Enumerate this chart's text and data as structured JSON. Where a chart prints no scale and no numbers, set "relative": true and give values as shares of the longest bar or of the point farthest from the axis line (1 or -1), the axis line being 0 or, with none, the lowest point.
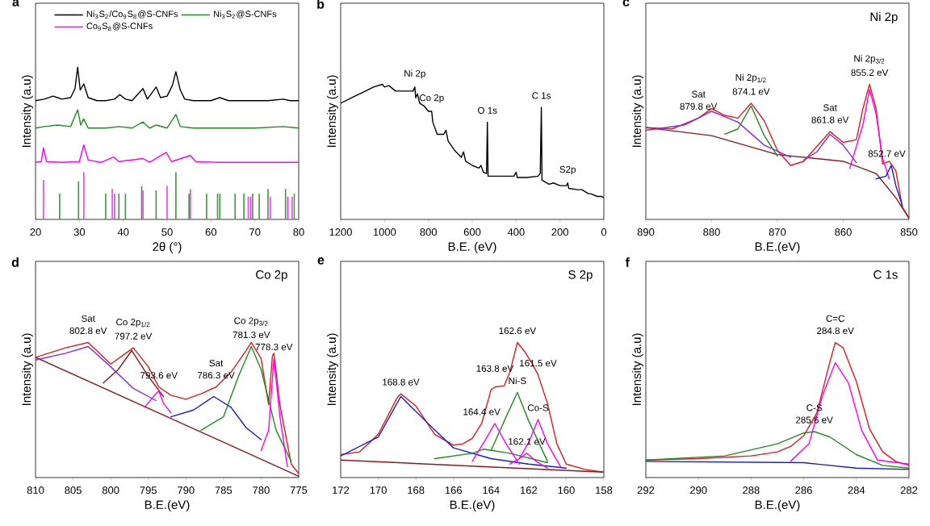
{
  "chart_data": [
    {
      "type": "line",
      "relative": true,
      "title": "a",
      "xlabel": "2θ (°)",
      "ylabel": "Intensity (a.u)",
      "xlim": [
        20,
        80
      ],
      "xticks": [
        20,
        30,
        40,
        50,
        60,
        70,
        80
      ],
      "legend": "top",
      "series": [
        {
          "name": "Ni$_{3}$S$_{2}$/Co$_{9}$S$_{8}$@S-CNFs",
          "color": "#000000",
          "x": [
            20,
            22,
            24,
            25,
            26,
            28,
            29,
            29.6,
            30.2,
            31,
            32,
            34,
            36,
            38,
            39.2,
            40.5,
            42,
            44.5,
            45.5,
            47.5,
            48.5,
            50,
            51.2,
            52,
            53,
            54,
            56,
            60,
            62,
            64,
            70,
            73,
            76.5,
            78,
            80
          ],
          "values": [
            0.78,
            0.79,
            0.81,
            0.8,
            0.79,
            0.8,
            0.86,
            1.0,
            0.85,
            0.89,
            0.8,
            0.78,
            0.78,
            0.79,
            0.82,
            0.79,
            0.78,
            0.86,
            0.79,
            0.87,
            0.8,
            0.81,
            0.88,
            0.97,
            0.85,
            0.79,
            0.78,
            0.78,
            0.8,
            0.78,
            0.78,
            0.78,
            0.79,
            0.78,
            0.78
          ]
        },
        {
          "name": "Ni$_{3}$S$_{2}$@S-CNFs",
          "color": "#1e8c1e",
          "x": [
            20,
            22,
            25,
            28,
            29.6,
            30.3,
            31,
            32,
            36,
            39,
            42,
            44.5,
            46,
            47.5,
            50,
            52,
            53,
            56,
            62,
            70,
            76.5,
            80
          ],
          "values": [
            0.6,
            0.61,
            0.62,
            0.61,
            0.72,
            0.62,
            0.66,
            0.6,
            0.6,
            0.61,
            0.6,
            0.64,
            0.6,
            0.62,
            0.6,
            0.69,
            0.61,
            0.6,
            0.6,
            0.6,
            0.61,
            0.6
          ]
        },
        {
          "name": "Co$_{9}$S$_{8}$@S-CNFs",
          "color": "#ff00ff",
          "x": [
            20,
            21.3,
            21.8,
            22.5,
            26,
            30,
            31,
            32,
            35,
            37.8,
            39,
            44.5,
            46,
            49.8,
            51,
            55.3,
            56.5,
            62,
            70,
            80
          ],
          "values": [
            0.375,
            0.38,
            0.47,
            0.38,
            0.375,
            0.38,
            0.49,
            0.39,
            0.375,
            0.41,
            0.38,
            0.4,
            0.375,
            0.44,
            0.38,
            0.42,
            0.38,
            0.375,
            0.375,
            0.375
          ]
        },
        {
          "type": "bar",
          "color": "#3c9a3c",
          "x": [
            25.5,
            29.8,
            36,
            39,
            40.5,
            44.2,
            47.5,
            52,
            55,
            59,
            61.5,
            62,
            65.5,
            67.5,
            69.5,
            71,
            73,
            77,
            79
          ],
          "values": [
            0.17,
            0.25,
            0.17,
            0.17,
            0.17,
            0.22,
            0.19,
            0.31,
            0.17,
            0.17,
            0.17,
            0.17,
            0.17,
            0.17,
            0.17,
            0.17,
            0.2,
            0.2,
            0.17
          ]
        },
        {
          "type": "bar",
          "color": "#ff33ff",
          "x": [
            21.8,
            31,
            37.5,
            38,
            44.5,
            50,
            55.3,
            68.5,
            69,
            73.5,
            77.5,
            78.5
          ],
          "values": [
            0.26,
            0.31,
            0.2,
            0.17,
            0.19,
            0.22,
            0.2,
            0.15,
            0.15,
            0.15,
            0.15,
            0.15
          ]
        }
      ]
    },
    {
      "type": "line",
      "relative": true,
      "title": "b",
      "xlabel": "B.E. (eV)",
      "ylabel": "Intensity (a.u)",
      "xlim": [
        1200,
        0
      ],
      "xticks": [
        1200,
        1000,
        800,
        600,
        400,
        200,
        0
      ],
      "series": [
        {
          "color": "#000000",
          "x": [
            1200,
            1150,
            1100,
            1050,
            1010,
            1000,
            980,
            950,
            900,
            870,
            862,
            858,
            850,
            840,
            820,
            800,
            785,
            780,
            760,
            730,
            720,
            710,
            680,
            650,
            640,
            630,
            600,
            570,
            560,
            550,
            535,
            531,
            528,
            500,
            450,
            410,
            400,
            395,
            350,
            300,
            290,
            285,
            282,
            250,
            230,
            200,
            170,
            165,
            160,
            120,
            100,
            70,
            60,
            30,
            10,
            0
          ],
          "values": [
            0.86,
            0.9,
            0.94,
            0.98,
            1.0,
            0.98,
            0.99,
            0.95,
            0.95,
            0.95,
            0.98,
            0.9,
            0.93,
            0.86,
            0.84,
            0.8,
            0.8,
            0.72,
            0.63,
            0.63,
            0.66,
            0.58,
            0.51,
            0.46,
            0.5,
            0.43,
            0.4,
            0.38,
            0.4,
            0.35,
            0.34,
            0.72,
            0.32,
            0.32,
            0.32,
            0.32,
            0.35,
            0.31,
            0.31,
            0.32,
            0.34,
            0.83,
            0.29,
            0.26,
            0.27,
            0.25,
            0.25,
            0.27,
            0.23,
            0.22,
            0.22,
            0.19,
            0.19,
            0.17,
            0.17,
            0.16
          ]
        }
      ],
      "annotations": [
        {
          "text": "Ni 2p",
          "x": 862,
          "y": 0.98
        },
        {
          "text": "Co 2p",
          "x": 785,
          "y": 0.8
        },
        {
          "text": "O 1s",
          "x": 531,
          "y": 0.72
        },
        {
          "text": "C 1s",
          "x": 285,
          "y": 0.83
        },
        {
          "text": "S2p",
          "x": 165,
          "y": 0.27
        }
      ]
    },
    {
      "type": "line",
      "relative": true,
      "title": "c",
      "subtitle": "Ni 2p",
      "xlabel": "B.E.(eV)",
      "ylabel": "Intensity (a.u)",
      "xlim": [
        890,
        850
      ],
      "xticks": [
        890,
        880,
        870,
        860,
        850
      ],
      "series": [
        {
          "color": "#e31a1c",
          "x": [
            890,
            886,
            882,
            880,
            878,
            876,
            874,
            872,
            870,
            868,
            866,
            864,
            862,
            860,
            858,
            857,
            856,
            855,
            854,
            853,
            852,
            851,
            850
          ],
          "values": [
            0.68,
            0.67,
            0.75,
            0.82,
            0.77,
            0.75,
            0.86,
            0.73,
            0.51,
            0.4,
            0.43,
            0.54,
            0.65,
            0.57,
            0.59,
            0.82,
            1.0,
            0.82,
            0.41,
            0.43,
            0.36,
            0.09,
            0.01
          ]
        },
        {
          "color": "#8b1a1a",
          "x": [
            890,
            880,
            870,
            860,
            855,
            852,
            850
          ],
          "values": [
            0.68,
            0.62,
            0.48,
            0.43,
            0.34,
            0.16,
            0.01
          ]
        },
        {
          "color": "#8a2be2",
          "x": [
            890,
            884,
            880,
            876,
            872,
            868
          ],
          "values": [
            0.66,
            0.7,
            0.8,
            0.72,
            0.55,
            0.46
          ]
        },
        {
          "color": "#1e8c1e",
          "x": [
            878,
            876,
            874,
            872,
            870
          ],
          "values": [
            0.63,
            0.67,
            0.84,
            0.62,
            0.47
          ]
        },
        {
          "color": "#8a2be2",
          "x": [
            866,
            864,
            862,
            860,
            858
          ],
          "values": [
            0.44,
            0.5,
            0.63,
            0.55,
            0.42
          ]
        },
        {
          "color": "#ff00ff",
          "x": [
            859,
            857,
            856,
            855,
            854,
            853
          ],
          "values": [
            0.38,
            0.7,
            0.96,
            0.78,
            0.45,
            0.3
          ]
        },
        {
          "color": "#1a1acd",
          "x": [
            855,
            853.5,
            852.7,
            852,
            851
          ],
          "values": [
            0.3,
            0.32,
            0.4,
            0.25,
            0.1
          ]
        }
      ],
      "annotations": [
        {
          "text": "879.8 eV",
          "x": 882,
          "y": 0.75
        },
        {
          "text": "Sat",
          "x": 882,
          "y": 0.75
        },
        {
          "text": "874.1 eV",
          "x": 874,
          "y": 0.86
        },
        {
          "text": "Ni 2p$_{1/2}$",
          "x": 874,
          "y": 0.86
        },
        {
          "text": "861.8 eV",
          "x": 862,
          "y": 0.65
        },
        {
          "text": "Sat",
          "x": 862,
          "y": 0.65
        },
        {
          "text": "855.2 eV",
          "x": 856,
          "y": 1.0
        },
        {
          "text": "Ni 2p$_{3/2}$",
          "x": 856,
          "y": 1.0
        },
        {
          "text": "852.7 eV",
          "x": 852.7,
          "y": 0.4
        }
      ]
    },
    {
      "type": "line",
      "relative": true,
      "title": "d",
      "subtitle": "Co 2p",
      "xlabel": "B.E.(eV)",
      "ylabel": "Intensity (a.u)",
      "xlim": [
        810,
        775
      ],
      "xticks": [
        810,
        805,
        800,
        795,
        790,
        785,
        780,
        775
      ],
      "series": [
        {
          "color": "#e31a1c",
          "x": [
            810,
            806,
            803,
            800,
            798,
            797,
            795,
            793.6,
            792,
            790,
            788,
            786,
            784,
            782,
            781.3,
            780,
            779,
            778.5,
            778.3,
            777.5,
            776,
            775
          ],
          "values": [
            0.89,
            0.96,
            1.0,
            0.84,
            0.92,
            0.96,
            0.82,
            0.67,
            0.61,
            0.58,
            0.62,
            0.67,
            0.78,
            0.94,
            1.0,
            0.88,
            0.54,
            0.9,
            0.92,
            0.54,
            0.1,
            0.03
          ]
        },
        {
          "color": "#8b1a1a",
          "x": [
            810,
            775
          ],
          "values": [
            0.89,
            0.01
          ]
        },
        {
          "color": "#8a2be2",
          "x": [
            810,
            806,
            803,
            800,
            797,
            794
          ],
          "values": [
            0.87,
            0.92,
            0.97,
            0.82,
            0.66,
            0.57
          ]
        },
        {
          "color": "#8b1a1a",
          "x": [
            801,
            799,
            797.2,
            795,
            793
          ],
          "values": [
            0.7,
            0.8,
            0.94,
            0.75,
            0.6
          ]
        },
        {
          "color": "#ff00ff",
          "x": [
            795.5,
            794,
            793.6,
            793,
            792
          ],
          "values": [
            0.52,
            0.62,
            0.64,
            0.55,
            0.48
          ]
        },
        {
          "color": "#1a1acd",
          "x": [
            792,
            789,
            786.3,
            784,
            782,
            780
          ],
          "values": [
            0.45,
            0.5,
            0.6,
            0.52,
            0.37,
            0.28
          ]
        },
        {
          "color": "#1e8c1e",
          "x": [
            788,
            785,
            783,
            781.3,
            780,
            778,
            776
          ],
          "values": [
            0.35,
            0.45,
            0.75,
            0.97,
            0.8,
            0.35,
            0.12
          ]
        },
        {
          "color": "#ff00ff",
          "x": [
            780,
            779,
            778.3,
            777.5,
            776.5
          ],
          "values": [
            0.2,
            0.35,
            0.88,
            0.45,
            0.08
          ]
        }
      ],
      "annotations": [
        {
          "text": "802.8 eV",
          "x": 803,
          "y": 1.0
        },
        {
          "text": "Sat",
          "x": 803,
          "y": 1.0
        },
        {
          "text": "797.2 eV",
          "x": 797,
          "y": 0.96
        },
        {
          "text": "Co 2p$_{1/2}$",
          "x": 797,
          "y": 0.96
        },
        {
          "text": "793.6 eV",
          "x": 793.6,
          "y": 0.67
        },
        {
          "text": "786.3 eV",
          "x": 786,
          "y": 0.67
        },
        {
          "text": "Sat",
          "x": 786,
          "y": 0.67
        },
        {
          "text": "781.3 eV",
          "x": 781.3,
          "y": 0.97
        },
        {
          "text": "Co 2p$_{3/2}$",
          "x": 781.3,
          "y": 0.97
        },
        {
          "text": "778.3 eV",
          "x": 778.3,
          "y": 0.88
        }
      ]
    },
    {
      "type": "line",
      "relative": true,
      "title": "e",
      "subtitle": "S 2p",
      "xlabel": "B.E.(eV)",
      "ylabel": "Intensity (a.u)",
      "xlim": [
        172,
        158
      ],
      "xticks": [
        172,
        170,
        168,
        166,
        164,
        162,
        160,
        158
      ],
      "series": [
        {
          "color": "#e31a1c",
          "x": [
            172,
            171,
            170,
            169,
            168.8,
            168,
            167,
            166,
            165.5,
            165,
            164.5,
            164,
            163.8,
            163.3,
            163,
            162.6,
            162.2,
            161.8,
            161.5,
            161,
            160.5,
            160,
            159,
            158
          ],
          "values": [
            0.17,
            0.19,
            0.32,
            0.59,
            0.62,
            0.53,
            0.32,
            0.24,
            0.25,
            0.29,
            0.4,
            0.65,
            0.67,
            0.68,
            0.78,
            1.0,
            0.93,
            0.84,
            0.76,
            0.55,
            0.25,
            0.1,
            0.06,
            0.04
          ]
        },
        {
          "color": "#8b1a1a",
          "x": [
            172,
            158
          ],
          "values": [
            0.13,
            0.04
          ]
        },
        {
          "color": "#1a1acd",
          "x": [
            172,
            170,
            168.8,
            167.5,
            166,
            164,
            162,
            160
          ],
          "values": [
            0.16,
            0.3,
            0.6,
            0.42,
            0.22,
            0.14,
            0.1,
            0.07
          ]
        },
        {
          "color": "#1e8c1e",
          "x": [
            167,
            165,
            164.4,
            163,
            161
          ],
          "values": [
            0.14,
            0.18,
            0.21,
            0.18,
            0.11
          ]
        },
        {
          "color": "#1e8c1e",
          "x": [
            164,
            163.2,
            162.6,
            162,
            161
          ],
          "values": [
            0.2,
            0.45,
            0.63,
            0.42,
            0.12
          ]
        },
        {
          "color": "#ff00ff",
          "x": [
            165,
            164.3,
            163.8,
            163.2,
            162.5
          ],
          "values": [
            0.12,
            0.28,
            0.4,
            0.25,
            0.1
          ]
        },
        {
          "color": "#ff00ff",
          "x": [
            162.5,
            162,
            161.5,
            161,
            160.3
          ],
          "values": [
            0.14,
            0.26,
            0.43,
            0.25,
            0.08
          ]
        },
        {
          "color": "#ff00ff",
          "x": [
            163,
            162.5,
            162.1,
            161.6,
            161
          ],
          "values": [
            0.1,
            0.14,
            0.18,
            0.12,
            0.07
          ]
        }
      ],
      "annotations": [
        {
          "text": "168.8 eV",
          "x": 168.8,
          "y": 0.62
        },
        {
          "text": "164.4 eV",
          "x": 164.5,
          "y": 0.4
        },
        {
          "text": "162.6 eV",
          "x": 162.6,
          "y": 1.0
        },
        {
          "text": "Ni-S",
          "x": 162.6,
          "y": 0.63
        },
        {
          "text": "163.8 eV",
          "x": 163.8,
          "y": 0.67
        },
        {
          "text": "161.5 eV",
          "x": 161.5,
          "y": 0.76
        },
        {
          "text": "162.1 eV",
          "x": 162.1,
          "y": 0.18
        },
        {
          "text": "Co-S",
          "x": 161.5,
          "y": 0.43
        }
      ]
    },
    {
      "type": "line",
      "relative": true,
      "title": "f",
      "subtitle": "C 1s",
      "xlabel": "B.E.(eV)",
      "ylabel": "Intensity (a.u)",
      "xlim": [
        292,
        282
      ],
      "xticks": [
        292,
        290,
        288,
        286,
        284,
        282
      ],
      "series": [
        {
          "color": "#e31a1c",
          "x": [
            292,
            290,
            288,
            287,
            286.5,
            286,
            285.5,
            285,
            284.8,
            284.5,
            284,
            283.5,
            283,
            282.5,
            282
          ],
          "values": [
            0.13,
            0.14,
            0.16,
            0.19,
            0.23,
            0.31,
            0.48,
            0.86,
            1.0,
            0.96,
            0.71,
            0.36,
            0.19,
            0.12,
            0.09
          ]
        },
        {
          "color": "#1a1acd",
          "x": [
            292,
            286,
            284,
            282
          ],
          "values": [
            0.12,
            0.11,
            0.07,
            0.06
          ]
        },
        {
          "color": "#1e8c1e",
          "x": [
            292,
            289,
            287,
            286,
            285.6,
            285,
            284,
            283,
            282
          ],
          "values": [
            0.13,
            0.16,
            0.25,
            0.33,
            0.34,
            0.3,
            0.17,
            0.09,
            0.07
          ]
        },
        {
          "color": "#ff00ff",
          "x": [
            286.5,
            285.8,
            285.3,
            284.8,
            284.3,
            283.8,
            283.2,
            282
          ],
          "values": [
            0.12,
            0.25,
            0.6,
            0.85,
            0.7,
            0.35,
            0.13,
            0.1
          ]
        }
      ],
      "annotations": [
        {
          "text": "284.8 eV",
          "x": 284.8,
          "y": 1.0
        },
        {
          "text": "C=C",
          "x": 284.8,
          "y": 1.0
        },
        {
          "text": "285.6 eV",
          "x": 285.6,
          "y": 0.34
        },
        {
          "text": "C-S",
          "x": 285.6,
          "y": 0.34
        }
      ]
    }
  ]
}
